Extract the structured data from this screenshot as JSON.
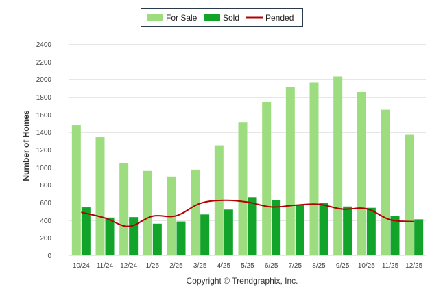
{
  "chart_data": {
    "type": "bar",
    "categories": [
      "10/24",
      "11/24",
      "12/24",
      "1/25",
      "2/25",
      "3/25",
      "4/25",
      "5/25",
      "6/25",
      "7/25",
      "8/25",
      "9/25",
      "10/25",
      "11/25",
      "12/25"
    ],
    "series": [
      {
        "name": "For Sale",
        "type": "bar",
        "color": "#9edc80",
        "values": [
          1480,
          1340,
          1050,
          960,
          890,
          975,
          1250,
          1510,
          1740,
          1910,
          1960,
          2030,
          1855,
          1655,
          1375
        ]
      },
      {
        "name": "Sold",
        "type": "bar",
        "color": "#12a32a",
        "values": [
          545,
          430,
          435,
          360,
          385,
          465,
          520,
          660,
          625,
          575,
          595,
          555,
          540,
          445,
          410
        ]
      },
      {
        "name": "Pended",
        "type": "line",
        "color": "#b30000",
        "values": [
          490,
          425,
          330,
          445,
          450,
          590,
          625,
          605,
          550,
          570,
          580,
          525,
          530,
          405,
          385
        ]
      }
    ],
    "ylabel": "Number of Homes",
    "xlabel": "",
    "ylim": [
      0,
      2400
    ],
    "yticks": [
      0,
      200,
      400,
      600,
      800,
      1000,
      1200,
      1400,
      1600,
      1800,
      2000,
      2200,
      2400
    ],
    "grid": true,
    "legend_position": "top-center"
  },
  "footer": "Copyright © Trendgraphix, Inc."
}
